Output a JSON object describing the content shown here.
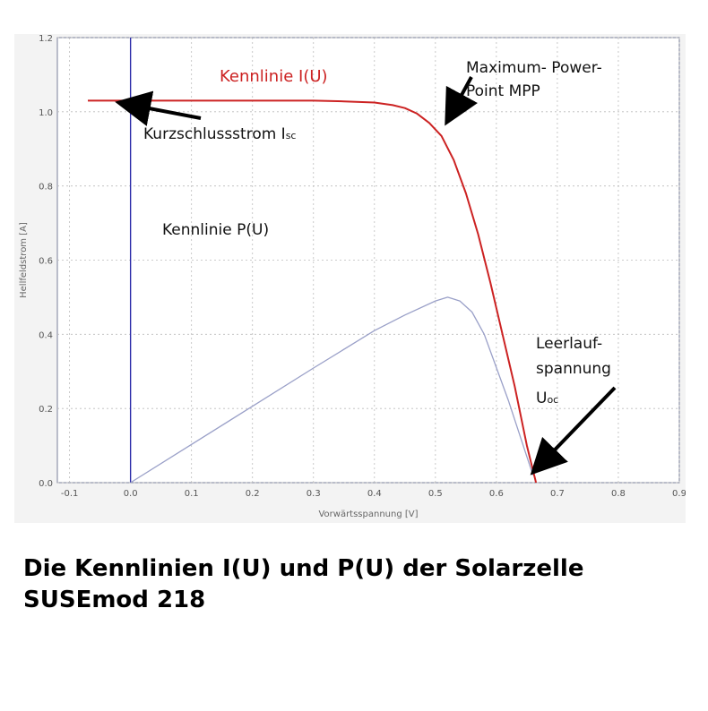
{
  "chart_data": {
    "type": "line",
    "xlabel": "Vorwärtsspannung [V]",
    "ylabel": "Hellfeldstrom [A]",
    "xlim": [
      -0.12,
      0.9
    ],
    "ylim": [
      0,
      1.2
    ],
    "x_ticks": [
      "-0.1",
      "0.0",
      "0.1",
      "0.2",
      "0.3",
      "0.4",
      "0.5",
      "0.6",
      "0.7",
      "0.8",
      "0.9"
    ],
    "y_ticks": [
      "0.0",
      "0.2",
      "0.4",
      "0.6",
      "0.8",
      "1.0",
      "1.2"
    ],
    "grid": true,
    "series": [
      {
        "name": "Kennlinie I(U)",
        "color": "#cc2222",
        "x": [
          -0.07,
          0.0,
          0.1,
          0.2,
          0.3,
          0.35,
          0.4,
          0.43,
          0.45,
          0.47,
          0.49,
          0.51,
          0.53,
          0.55,
          0.57,
          0.59,
          0.61,
          0.63,
          0.65,
          0.665
        ],
        "y": [
          1.03,
          1.03,
          1.03,
          1.03,
          1.03,
          1.028,
          1.025,
          1.018,
          1.01,
          0.995,
          0.97,
          0.935,
          0.87,
          0.78,
          0.67,
          0.54,
          0.4,
          0.26,
          0.1,
          0.0
        ]
      },
      {
        "name": "Kennlinie P(U)",
        "color": "#9aa0c8",
        "x": [
          0.0,
          0.1,
          0.2,
          0.3,
          0.4,
          0.45,
          0.5,
          0.52,
          0.54,
          0.56,
          0.58,
          0.6,
          0.62,
          0.64,
          0.66
        ],
        "y": [
          0.0,
          0.103,
          0.206,
          0.309,
          0.41,
          0.452,
          0.49,
          0.5,
          0.49,
          0.46,
          0.4,
          0.31,
          0.22,
          0.12,
          0.02
        ]
      }
    ],
    "annotations": [
      {
        "text": "Kennlinie I(U)",
        "color": "#cc2222"
      },
      {
        "text": "Maximum- Power-"
      },
      {
        "text": "Point MPP"
      },
      {
        "text": "Kurzschlussstrom I",
        "sub": "sc"
      },
      {
        "text": "Kennlinie P(U)"
      },
      {
        "text": "Leerlauf-"
      },
      {
        "text": "spannung"
      },
      {
        "text": "U",
        "sub": "oc"
      }
    ]
  },
  "caption": {
    "line1": "Die Kennlinien I(U) und P(U) der Solarzelle",
    "line2": "SUSEmod 218"
  }
}
